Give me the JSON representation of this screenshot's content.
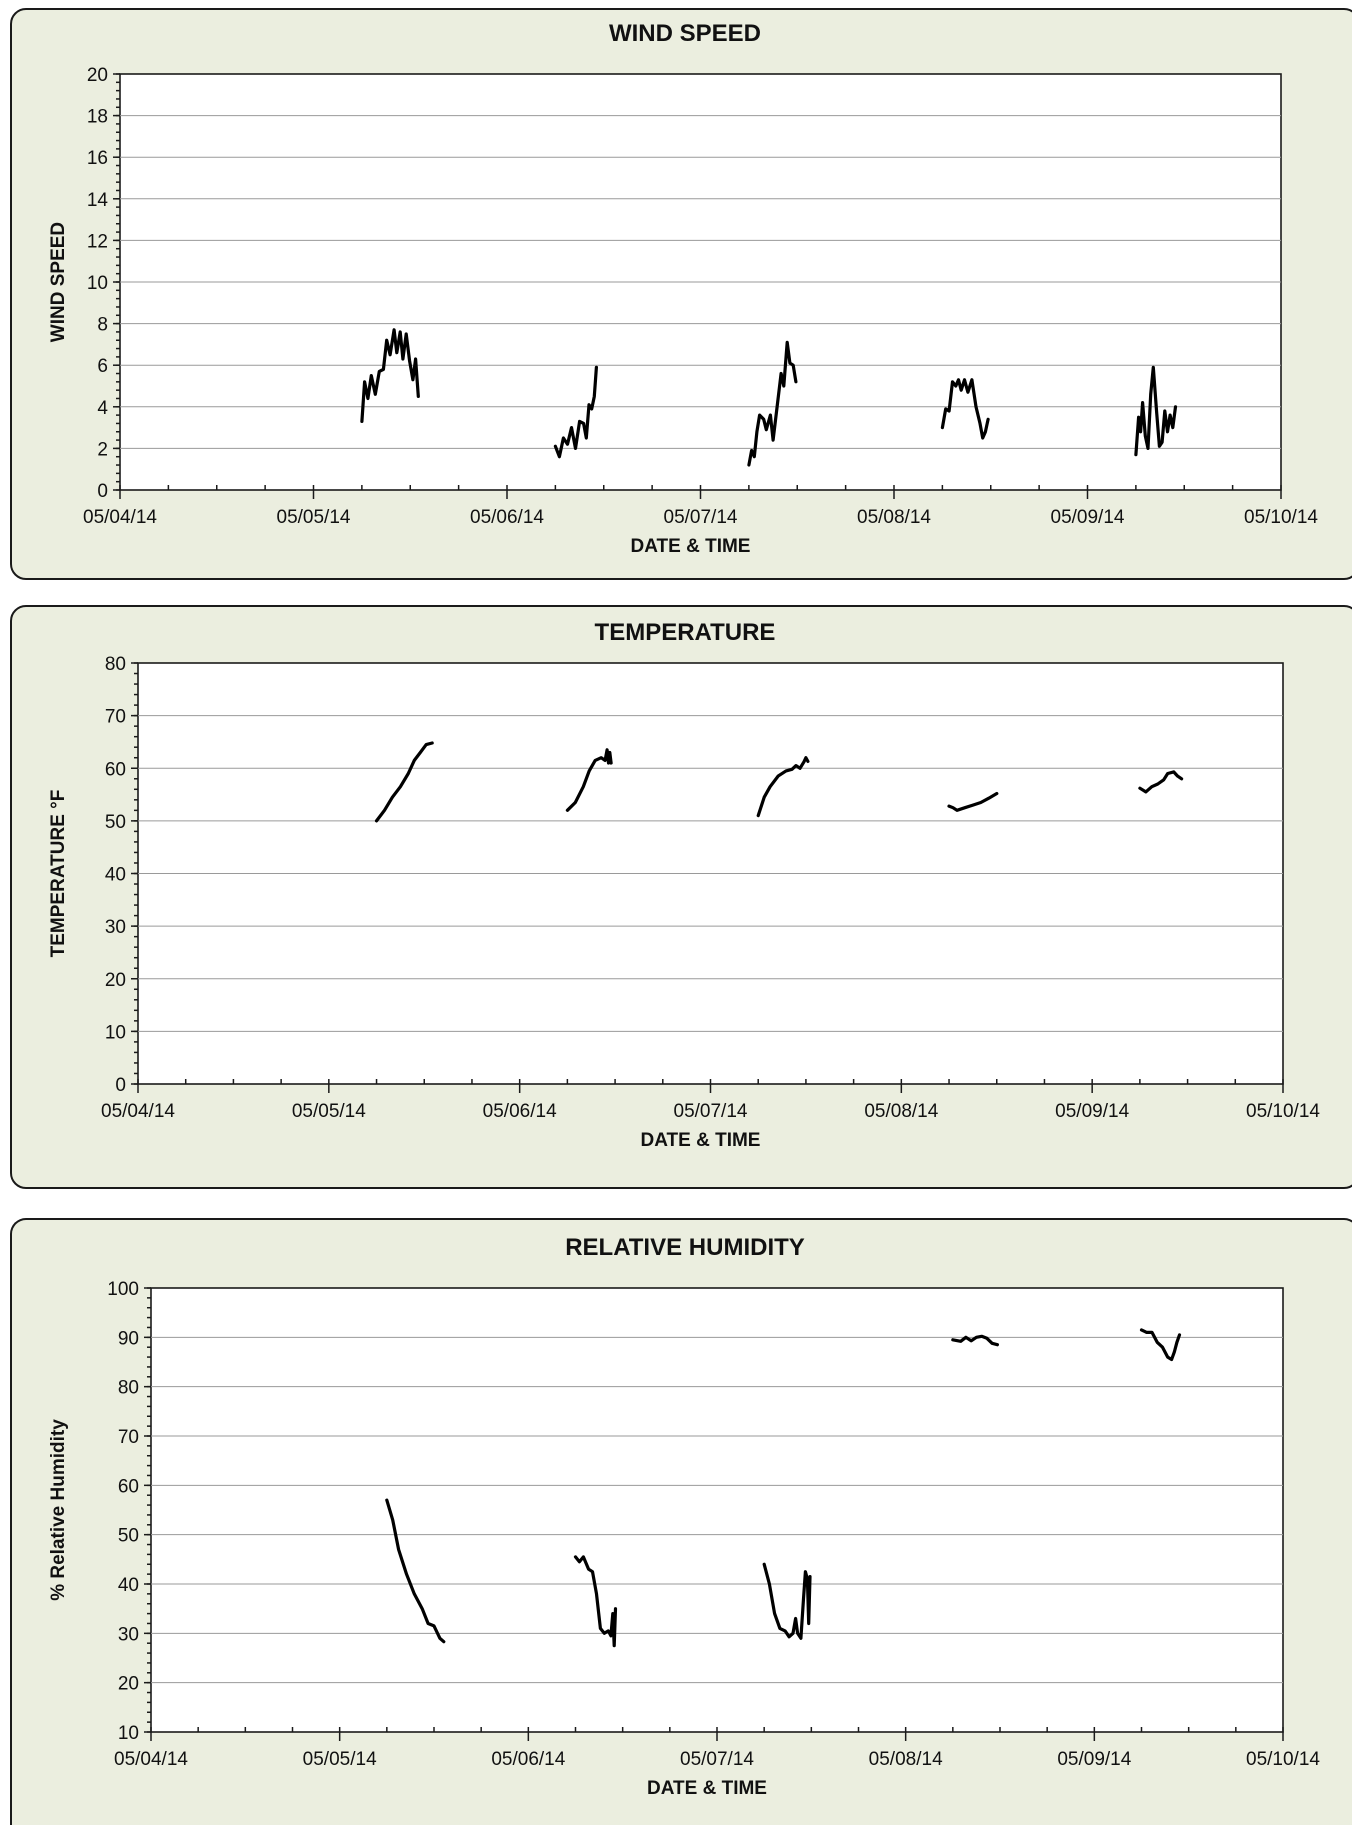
{
  "colors": {
    "panel_bg": "#ebeedf",
    "plot_bg": "#ffffff",
    "line": "#000000",
    "grid": "#9a9a9a"
  },
  "chart_data": [
    {
      "type": "line",
      "title": "WIND SPEED",
      "xlabel": "DATE & TIME",
      "ylabel": "WIND SPEED",
      "ylim": [
        0,
        20
      ],
      "yticks": [
        0,
        2,
        4,
        6,
        8,
        10,
        12,
        14,
        16,
        18,
        20
      ],
      "xlim": [
        "05/04/14",
        "05/10/14"
      ],
      "xticks": [
        "05/04/14",
        "05/05/14",
        "05/06/14",
        "05/07/14",
        "05/08/14",
        "05/09/14",
        "05/10/14"
      ],
      "grid": true,
      "segments": [
        [
          [
            "05/05/14 06:00",
            3.3
          ],
          [
            "05/05/14 06:20",
            5.2
          ],
          [
            "05/05/14 06:45",
            4.4
          ],
          [
            "05/05/14 07:10",
            5.5
          ],
          [
            "05/05/14 07:40",
            4.6
          ],
          [
            "05/05/14 08:10",
            5.7
          ],
          [
            "05/05/14 08:40",
            5.8
          ],
          [
            "05/05/14 09:05",
            7.2
          ],
          [
            "05/05/14 09:30",
            6.5
          ],
          [
            "05/05/14 10:00",
            7.7
          ],
          [
            "05/05/14 10:20",
            6.6
          ],
          [
            "05/05/14 10:45",
            7.6
          ],
          [
            "05/05/14 11:05",
            6.3
          ],
          [
            "05/05/14 11:30",
            7.5
          ],
          [
            "05/05/14 11:55",
            6.2
          ],
          [
            "05/05/14 12:20",
            5.3
          ],
          [
            "05/05/14 12:40",
            6.3
          ],
          [
            "05/05/14 13:00",
            4.5
          ]
        ],
        [
          [
            "05/06/14 06:00",
            2.1
          ],
          [
            "05/06/14 06:30",
            1.6
          ],
          [
            "05/06/14 07:00",
            2.5
          ],
          [
            "05/06/14 07:30",
            2.2
          ],
          [
            "05/06/14 08:00",
            3.0
          ],
          [
            "05/06/14 08:30",
            2.0
          ],
          [
            "05/06/14 09:00",
            3.3
          ],
          [
            "05/06/14 09:30",
            3.2
          ],
          [
            "05/06/14 09:50",
            2.5
          ],
          [
            "05/06/14 10:10",
            4.1
          ],
          [
            "05/06/14 10:30",
            3.9
          ],
          [
            "05/06/14 10:50",
            4.5
          ],
          [
            "05/06/14 11:05",
            5.9
          ]
        ],
        [
          [
            "05/07/14 06:00",
            1.2
          ],
          [
            "05/07/14 06:20",
            1.9
          ],
          [
            "05/07/14 06:40",
            1.6
          ],
          [
            "05/07/14 07:00",
            2.8
          ],
          [
            "05/07/14 07:20",
            3.6
          ],
          [
            "05/07/14 07:50",
            3.4
          ],
          [
            "05/07/14 08:10",
            2.9
          ],
          [
            "05/07/14 08:40",
            3.6
          ],
          [
            "05/07/14 09:00",
            2.4
          ],
          [
            "05/07/14 09:30",
            4.0
          ],
          [
            "05/07/14 10:00",
            5.6
          ],
          [
            "05/07/14 10:20",
            5.0
          ],
          [
            "05/07/14 10:45",
            7.1
          ],
          [
            "05/07/14 11:05",
            6.1
          ],
          [
            "05/07/14 11:30",
            6.0
          ],
          [
            "05/07/14 11:50",
            5.2
          ]
        ],
        [
          [
            "05/08/14 06:00",
            3.0
          ],
          [
            "05/08/14 06:25",
            3.9
          ],
          [
            "05/08/14 06:50",
            3.8
          ],
          [
            "05/08/14 07:15",
            5.2
          ],
          [
            "05/08/14 07:40",
            5.0
          ],
          [
            "05/08/14 08:00",
            5.3
          ],
          [
            "05/08/14 08:20",
            4.8
          ],
          [
            "05/08/14 08:45",
            5.3
          ],
          [
            "05/08/14 09:10",
            4.7
          ],
          [
            "05/08/14 09:40",
            5.3
          ],
          [
            "05/08/14 10:10",
            4.0
          ],
          [
            "05/08/14 10:40",
            3.2
          ],
          [
            "05/08/14 11:00",
            2.5
          ],
          [
            "05/08/14 11:20",
            2.8
          ],
          [
            "05/08/14 11:40",
            3.4
          ]
        ],
        [
          [
            "05/09/14 06:00",
            1.7
          ],
          [
            "05/09/14 06:20",
            3.5
          ],
          [
            "05/09/14 06:35",
            2.8
          ],
          [
            "05/09/14 06:50",
            4.2
          ],
          [
            "05/09/14 07:10",
            2.6
          ],
          [
            "05/09/14 07:30",
            2.0
          ],
          [
            "05/09/14 07:50",
            4.6
          ],
          [
            "05/09/14 08:10",
            5.9
          ],
          [
            "05/09/14 08:35",
            3.7
          ],
          [
            "05/09/14 08:55",
            2.1
          ],
          [
            "05/09/14 09:15",
            2.3
          ],
          [
            "05/09/14 09:35",
            3.8
          ],
          [
            "05/09/14 09:55",
            2.8
          ],
          [
            "05/09/14 10:15",
            3.6
          ],
          [
            "05/09/14 10:35",
            3.0
          ],
          [
            "05/09/14 10:55",
            4.0
          ]
        ]
      ]
    },
    {
      "type": "line",
      "title": "TEMPERATURE",
      "xlabel": "DATE & TIME",
      "ylabel": "TEMPERATURE °F",
      "ylim": [
        0,
        80
      ],
      "yticks": [
        0,
        10,
        20,
        30,
        40,
        50,
        60,
        70,
        80
      ],
      "xlim": [
        "05/04/14",
        "05/10/14"
      ],
      "xticks": [
        "05/04/14",
        "05/05/14",
        "05/06/14",
        "05/07/14",
        "05/08/14",
        "05/09/14",
        "05/10/14"
      ],
      "grid": true,
      "segments": [
        [
          [
            "05/05/14 06:00",
            50.0
          ],
          [
            "05/05/14 07:00",
            52.0
          ],
          [
            "05/05/14 08:00",
            54.5
          ],
          [
            "05/05/14 09:00",
            56.5
          ],
          [
            "05/05/14 10:00",
            59.0
          ],
          [
            "05/05/14 10:45",
            61.5
          ],
          [
            "05/05/14 11:30",
            63.0
          ],
          [
            "05/05/14 12:15",
            64.5
          ],
          [
            "05/05/14 13:00",
            64.8
          ]
        ],
        [
          [
            "05/06/14 06:00",
            52.0
          ],
          [
            "05/06/14 07:00",
            53.5
          ],
          [
            "05/06/14 08:00",
            56.5
          ],
          [
            "05/06/14 08:45",
            59.5
          ],
          [
            "05/06/14 09:30",
            61.5
          ],
          [
            "05/06/14 10:15",
            62.0
          ],
          [
            "05/06/14 10:45",
            61.5
          ],
          [
            "05/06/14 11:00",
            63.5
          ],
          [
            "05/06/14 11:10",
            61.0
          ],
          [
            "05/06/14 11:20",
            63.0
          ],
          [
            "05/06/14 11:30",
            61.0
          ]
        ],
        [
          [
            "05/07/14 06:00",
            51.0
          ],
          [
            "05/07/14 06:45",
            54.5
          ],
          [
            "05/07/14 07:30",
            56.5
          ],
          [
            "05/07/14 08:30",
            58.5
          ],
          [
            "05/07/14 09:30",
            59.5
          ],
          [
            "05/07/14 10:15",
            59.8
          ],
          [
            "05/07/14 10:45",
            60.5
          ],
          [
            "05/07/14 11:15",
            60.0
          ],
          [
            "05/07/14 11:45",
            61.2
          ],
          [
            "05/07/14 12:00",
            62.0
          ],
          [
            "05/07/14 12:15",
            61.3
          ]
        ],
        [
          [
            "05/08/14 06:00",
            52.8
          ],
          [
            "05/08/14 06:30",
            52.5
          ],
          [
            "05/08/14 07:00",
            52.0
          ],
          [
            "05/08/14 08:00",
            52.5
          ],
          [
            "05/08/14 09:00",
            53.0
          ],
          [
            "05/08/14 10:00",
            53.5
          ],
          [
            "05/08/14 11:00",
            54.3
          ],
          [
            "05/08/14 12:00",
            55.2
          ]
        ],
        [
          [
            "05/09/14 06:00",
            56.2
          ],
          [
            "05/09/14 06:45",
            55.5
          ],
          [
            "05/09/14 07:30",
            56.5
          ],
          [
            "05/09/14 08:15",
            57.0
          ],
          [
            "05/09/14 09:00",
            57.8
          ],
          [
            "05/09/14 09:30",
            59.0
          ],
          [
            "05/09/14 10:15",
            59.3
          ],
          [
            "05/09/14 10:45",
            58.5
          ],
          [
            "05/09/14 11:15",
            58.0
          ]
        ]
      ]
    },
    {
      "type": "line",
      "title": "RELATIVE HUMIDITY",
      "xlabel": "DATE & TIME",
      "ylabel": "% Relative Humidity",
      "ylim": [
        10,
        100
      ],
      "yticks": [
        10,
        20,
        30,
        40,
        50,
        60,
        70,
        80,
        90,
        100
      ],
      "xlim": [
        "05/04/14",
        "05/10/14"
      ],
      "xticks": [
        "05/04/14",
        "05/05/14",
        "05/06/14",
        "05/07/14",
        "05/08/14",
        "05/09/14",
        "05/10/14"
      ],
      "grid": true,
      "segments": [
        [
          [
            "05/05/14 06:00",
            57.0
          ],
          [
            "05/05/14 06:45",
            53.0
          ],
          [
            "05/05/14 07:30",
            47.0
          ],
          [
            "05/05/14 08:30",
            42.0
          ],
          [
            "05/05/14 09:30",
            38.0
          ],
          [
            "05/05/14 10:30",
            35.0
          ],
          [
            "05/05/14 11:15",
            32.0
          ],
          [
            "05/05/14 12:00",
            31.5
          ],
          [
            "05/05/14 12:45",
            29.0
          ],
          [
            "05/05/14 13:15",
            28.3
          ]
        ],
        [
          [
            "05/06/14 06:00",
            45.5
          ],
          [
            "05/06/14 06:30",
            44.5
          ],
          [
            "05/06/14 07:00",
            45.5
          ],
          [
            "05/06/14 07:40",
            43.0
          ],
          [
            "05/06/14 08:10",
            42.5
          ],
          [
            "05/06/14 08:40",
            38.0
          ],
          [
            "05/06/14 09:10",
            31.0
          ],
          [
            "05/06/14 09:40",
            30.0
          ],
          [
            "05/06/14 10:10",
            30.5
          ],
          [
            "05/06/14 10:30",
            29.5
          ],
          [
            "05/06/14 10:45",
            34.0
          ],
          [
            "05/06/14 10:55",
            27.5
          ],
          [
            "05/06/14 11:05",
            35.0
          ]
        ],
        [
          [
            "05/07/14 06:00",
            44.0
          ],
          [
            "05/07/14 06:40",
            40.0
          ],
          [
            "05/07/14 07:20",
            34.0
          ],
          [
            "05/07/14 08:00",
            31.0
          ],
          [
            "05/07/14 08:40",
            30.5
          ],
          [
            "05/07/14 09:10",
            29.3
          ],
          [
            "05/07/14 09:40",
            30.0
          ],
          [
            "05/07/14 10:00",
            33.0
          ],
          [
            "05/07/14 10:15",
            30.0
          ],
          [
            "05/07/14 10:40",
            29.0
          ],
          [
            "05/07/14 11:00",
            37.0
          ],
          [
            "05/07/14 11:15",
            42.5
          ],
          [
            "05/07/14 11:30",
            41.0
          ],
          [
            "05/07/14 11:40",
            32.0
          ],
          [
            "05/07/14 11:50",
            41.5
          ]
        ],
        [
          [
            "05/08/14 06:00",
            89.5
          ],
          [
            "05/08/14 07:00",
            89.2
          ],
          [
            "05/08/14 07:40",
            90.0
          ],
          [
            "05/08/14 08:20",
            89.3
          ],
          [
            "05/08/14 09:00",
            90.0
          ],
          [
            "05/08/14 09:40",
            90.2
          ],
          [
            "05/08/14 10:20",
            89.8
          ],
          [
            "05/08/14 11:00",
            88.8
          ],
          [
            "05/08/14 11:40",
            88.5
          ]
        ],
        [
          [
            "05/09/14 06:00",
            91.5
          ],
          [
            "05/09/14 06:40",
            91.0
          ],
          [
            "05/09/14 07:20",
            91.0
          ],
          [
            "05/09/14 08:00",
            89.0
          ],
          [
            "05/09/14 08:40",
            88.0
          ],
          [
            "05/09/14 09:20",
            86.0
          ],
          [
            "05/09/14 09:50",
            85.5
          ],
          [
            "05/09/14 10:10",
            87.0
          ],
          [
            "05/09/14 10:30",
            89.0
          ],
          [
            "05/09/14 10:50",
            90.5
          ]
        ]
      ]
    }
  ]
}
